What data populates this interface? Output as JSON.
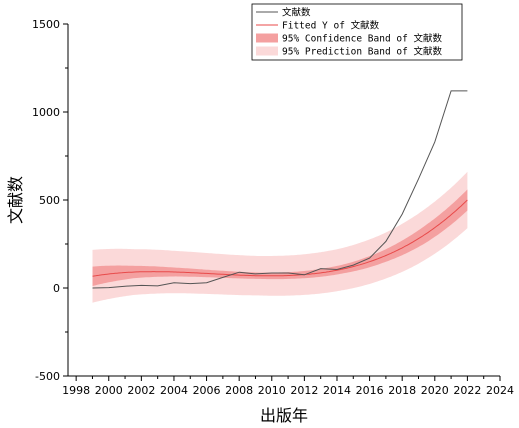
{
  "chart_data": {
    "type": "line",
    "xlabel": "出版年",
    "ylabel": "文献数",
    "xlim": [
      1997.5,
      2024
    ],
    "ylim": [
      -500,
      1500
    ],
    "xticks": [
      1998,
      2000,
      2002,
      2004,
      2006,
      2008,
      2010,
      2012,
      2014,
      2016,
      2018,
      2020,
      2022,
      2024
    ],
    "yticks": [
      -500,
      0,
      500,
      1000,
      1500
    ],
    "legend_position": "top-right",
    "legend": [
      "文献数",
      "Fitted Y of 文献数",
      "95% Confidence Band of 文献数",
      "95% Prediction Band of 文献数"
    ],
    "colors": {
      "observed": "#555555",
      "fitted": "#e84a4a",
      "confidence": "#f4a0a0",
      "prediction": "#fbd9d9"
    },
    "observed": {
      "x": [
        1999,
        2000,
        2001,
        2002,
        2003,
        2004,
        2005,
        2006,
        2007,
        2008,
        2009,
        2010,
        2011,
        2012,
        2013,
        2014,
        2015,
        2016,
        2017,
        2018,
        2019,
        2020,
        2021,
        2022
      ],
      "y": [
        0,
        2,
        10,
        15,
        12,
        30,
        25,
        30,
        60,
        90,
        80,
        85,
        85,
        75,
        110,
        105,
        130,
        170,
        265,
        420,
        620,
        830,
        1120,
        1120
      ]
    },
    "fit_coefficients": {
      "note_free": [
        47.5,
        22.03,
        -3.24,
        0.1295
      ],
      "origin_year": 1998
    },
    "confidence_halfwidth": [
      55,
      35,
      25,
      20,
      18,
      20,
      25,
      35,
      50,
      60
    ],
    "prediction_halfwidth": [
      150,
      130,
      120,
      115,
      112,
      115,
      120,
      130,
      145,
      160
    ]
  }
}
